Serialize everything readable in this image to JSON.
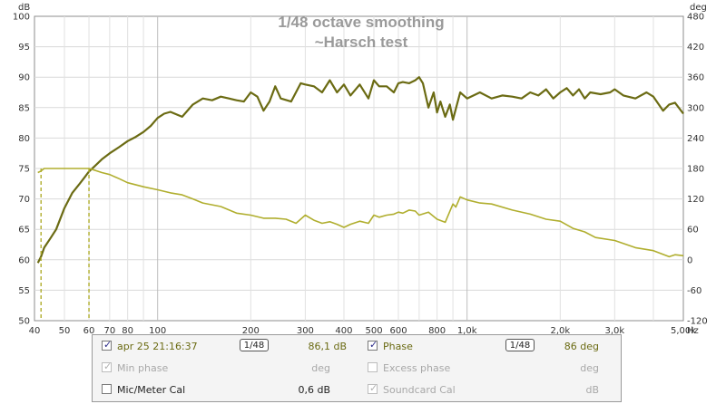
{
  "chart_data": {
    "type": "line",
    "title": "1/48 octave smoothing",
    "subtitle": "~Harsch test",
    "y_unit_left": "dB",
    "y_unit_right": "deg",
    "x_unit": "Hz",
    "xscale": "log",
    "xlim": [
      40,
      5000
    ],
    "ylim_left": [
      50,
      100
    ],
    "ylim_right": [
      -120,
      480
    ],
    "x_ticks": [
      {
        "v": 40,
        "label": "40"
      },
      {
        "v": 50,
        "label": "50"
      },
      {
        "v": 60,
        "label": "60"
      },
      {
        "v": 70,
        "label": "70"
      },
      {
        "v": 80,
        "label": "80"
      },
      {
        "v": 100,
        "label": "100"
      },
      {
        "v": 200,
        "label": "200"
      },
      {
        "v": 300,
        "label": "300"
      },
      {
        "v": 400,
        "label": "400"
      },
      {
        "v": 500,
        "label": "500"
      },
      {
        "v": 600,
        "label": "600"
      },
      {
        "v": 800,
        "label": "800"
      },
      {
        "v": 1000,
        "label": "1,0k"
      },
      {
        "v": 2000,
        "label": "2,0k"
      },
      {
        "v": 3000,
        "label": "3,0k"
      },
      {
        "v": 5000,
        "label": "5,00k"
      }
    ],
    "y_ticks_left": [
      100,
      95,
      90,
      85,
      80,
      75,
      70,
      65,
      60,
      55,
      50
    ],
    "y_ticks_right": [
      480,
      420,
      360,
      300,
      240,
      180,
      120,
      60,
      0,
      -60,
      -120
    ],
    "grid": true,
    "series": [
      {
        "name": "apr 25 21:16:37",
        "axis": "left",
        "color": "#6b6b13",
        "x": [
          41,
          42,
          43,
          45,
          47,
          50,
          53,
          56,
          58,
          60,
          63,
          66,
          70,
          75,
          80,
          85,
          90,
          95,
          100,
          105,
          110,
          120,
          130,
          140,
          150,
          160,
          170,
          180,
          190,
          200,
          210,
          220,
          230,
          240,
          250,
          270,
          290,
          300,
          320,
          340,
          360,
          380,
          400,
          420,
          450,
          480,
          500,
          520,
          550,
          580,
          600,
          620,
          650,
          680,
          700,
          720,
          750,
          780,
          800,
          820,
          850,
          880,
          900,
          950,
          1000,
          1100,
          1200,
          1300,
          1400,
          1500,
          1600,
          1700,
          1800,
          1900,
          2000,
          2100,
          2200,
          2300,
          2400,
          2500,
          2700,
          2900,
          3000,
          3200,
          3500,
          3800,
          4000,
          4300,
          4500,
          4700,
          5000
        ],
        "values": [
          59.5,
          60.5,
          62,
          63.5,
          65,
          68.5,
          71,
          72.5,
          73.5,
          74.5,
          75.5,
          76.5,
          77.5,
          78.5,
          79.5,
          80.2,
          81,
          82,
          83.3,
          84,
          84.3,
          83.5,
          85.5,
          86.5,
          86.2,
          86.8,
          86.5,
          86.2,
          86,
          87.5,
          86.8,
          84.5,
          86,
          88.5,
          86.5,
          86,
          89,
          88.8,
          88.5,
          87.5,
          89.5,
          87.5,
          88.8,
          87,
          88.8,
          86.5,
          89.5,
          88.5,
          88.5,
          87.5,
          89,
          89.2,
          89,
          89.5,
          90,
          89,
          85,
          87.5,
          84.2,
          86,
          83.5,
          85.5,
          83,
          87.5,
          86.5,
          87.5,
          86.5,
          87,
          86.8,
          86.5,
          87.5,
          87,
          88,
          86.5,
          87.5,
          88.2,
          87,
          88,
          86.5,
          87.5,
          87.2,
          87.5,
          88,
          87,
          86.5,
          87.5,
          86.8,
          84.5,
          85.5,
          85.8,
          84
        ]
      },
      {
        "name": "Phase",
        "axis": "right",
        "color": "#b0ae2e",
        "x": [
          41,
          42,
          43,
          50,
          55,
          58,
          60,
          63,
          66,
          70,
          75,
          80,
          90,
          100,
          110,
          120,
          130,
          140,
          160,
          180,
          200,
          220,
          240,
          260,
          280,
          300,
          320,
          340,
          360,
          380,
          400,
          420,
          450,
          480,
          500,
          520,
          550,
          580,
          600,
          620,
          650,
          680,
          700,
          750,
          800,
          850,
          900,
          920,
          950,
          1000,
          1100,
          1200,
          1400,
          1600,
          1800,
          2000,
          2200,
          2400,
          2600,
          3000,
          3500,
          4000,
          4500,
          4700,
          5000
        ],
        "values": [
          172,
          175,
          180,
          180,
          180,
          180,
          180,
          176,
          172,
          168,
          160,
          152,
          144,
          138,
          132,
          128,
          120,
          112,
          105,
          92,
          88,
          82,
          82,
          80,
          72,
          88,
          78,
          72,
          75,
          70,
          64,
          70,
          76,
          72,
          88,
          84,
          88,
          90,
          94,
          92,
          98,
          96,
          88,
          94,
          80,
          74,
          110,
          104,
          124,
          118,
          112,
          110,
          98,
          90,
          80,
          76,
          62,
          55,
          44,
          38,
          24,
          18,
          6,
          10,
          8
        ]
      }
    ]
  },
  "legend": {
    "row1": {
      "name": "apr 25 21:16:37",
      "checked": "✓",
      "smoothing": "1/48",
      "value": "86,1 dB",
      "phase_label": "Phase",
      "phase_checked": "✓",
      "phase_smoothing": "1/48",
      "phase_value": "86 deg"
    },
    "row2": {
      "min_phase": "Min phase",
      "min_phase_checked": "✓",
      "min_phase_unit": "deg",
      "excess_phase": "Excess phase",
      "excess_phase_unit": "deg"
    },
    "row3": {
      "mic_cal": "Mic/Meter Cal",
      "mic_cal_value": "0,6 dB",
      "soundcard_cal": "Soundcard Cal",
      "soundcard_checked": "✓",
      "soundcard_unit": "dB"
    }
  }
}
